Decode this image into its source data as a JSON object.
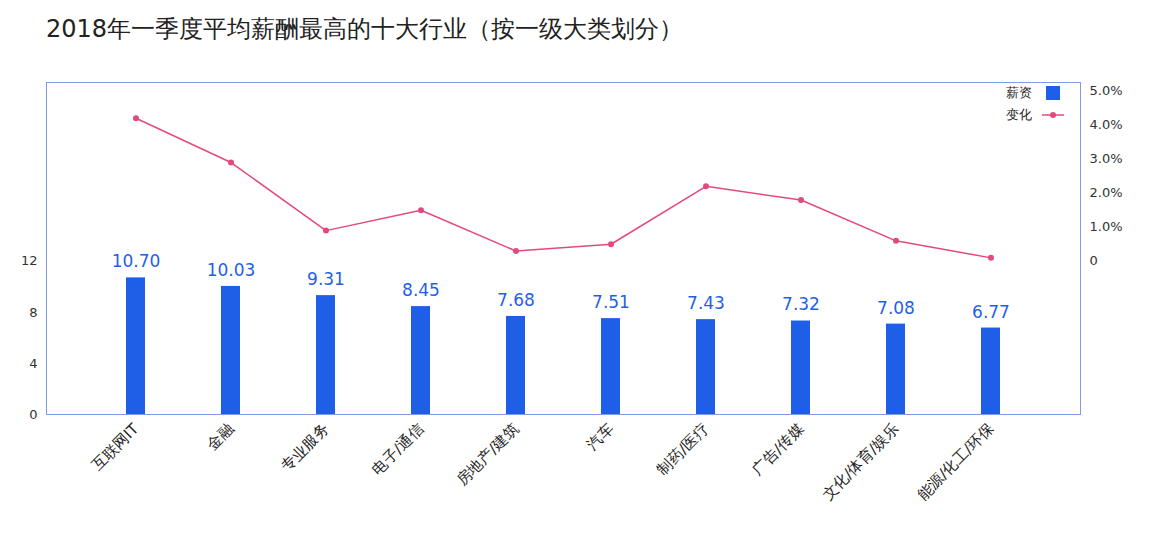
{
  "chart_data": {
    "type": "bar",
    "title": "2018年一季度平均薪酬最高的十大行业（按一级大类划分）",
    "categories": [
      "互联网IT",
      "金融",
      "专业服务",
      "电子/通信",
      "房地产/建筑",
      "汽车",
      "制药/医疗",
      "广告/传媒",
      "文化/体育/娱乐",
      "能源/化工/环保"
    ],
    "series": [
      {
        "name": "薪资",
        "type": "bar",
        "color": "#1f5fe8",
        "values": [
          10.7,
          10.03,
          9.31,
          8.45,
          7.68,
          7.51,
          7.43,
          7.32,
          7.08,
          6.77
        ],
        "value_labels": [
          "10.70",
          "10.03",
          "9.31",
          "8.45",
          "7.68",
          "7.51",
          "7.43",
          "7.32",
          "7.08",
          "6.77"
        ],
        "data_labels": true
      },
      {
        "name": "变化",
        "type": "line",
        "color": "#e3497e",
        "marker": "circle",
        "axis": "y2",
        "values": [
          4.2,
          2.9,
          0.9,
          1.5,
          0.3,
          0.5,
          2.2,
          1.8,
          0.6,
          0.1
        ]
      }
    ],
    "ylim": [
      0,
      26
    ],
    "yticks": [
      0,
      4,
      8,
      12
    ],
    "y2lim": [
      -4.5,
      5.25
    ],
    "y2ticks": [
      {
        "value": 0,
        "label": "0"
      },
      {
        "value": 1,
        "label": "1.0%"
      },
      {
        "value": 2,
        "label": "2.0%"
      },
      {
        "value": 3,
        "label": "3.0%"
      },
      {
        "value": 4,
        "label": "4.0%"
      },
      {
        "value": 5,
        "label": "5.0%"
      }
    ],
    "legend": "upper right",
    "grid": false
  }
}
